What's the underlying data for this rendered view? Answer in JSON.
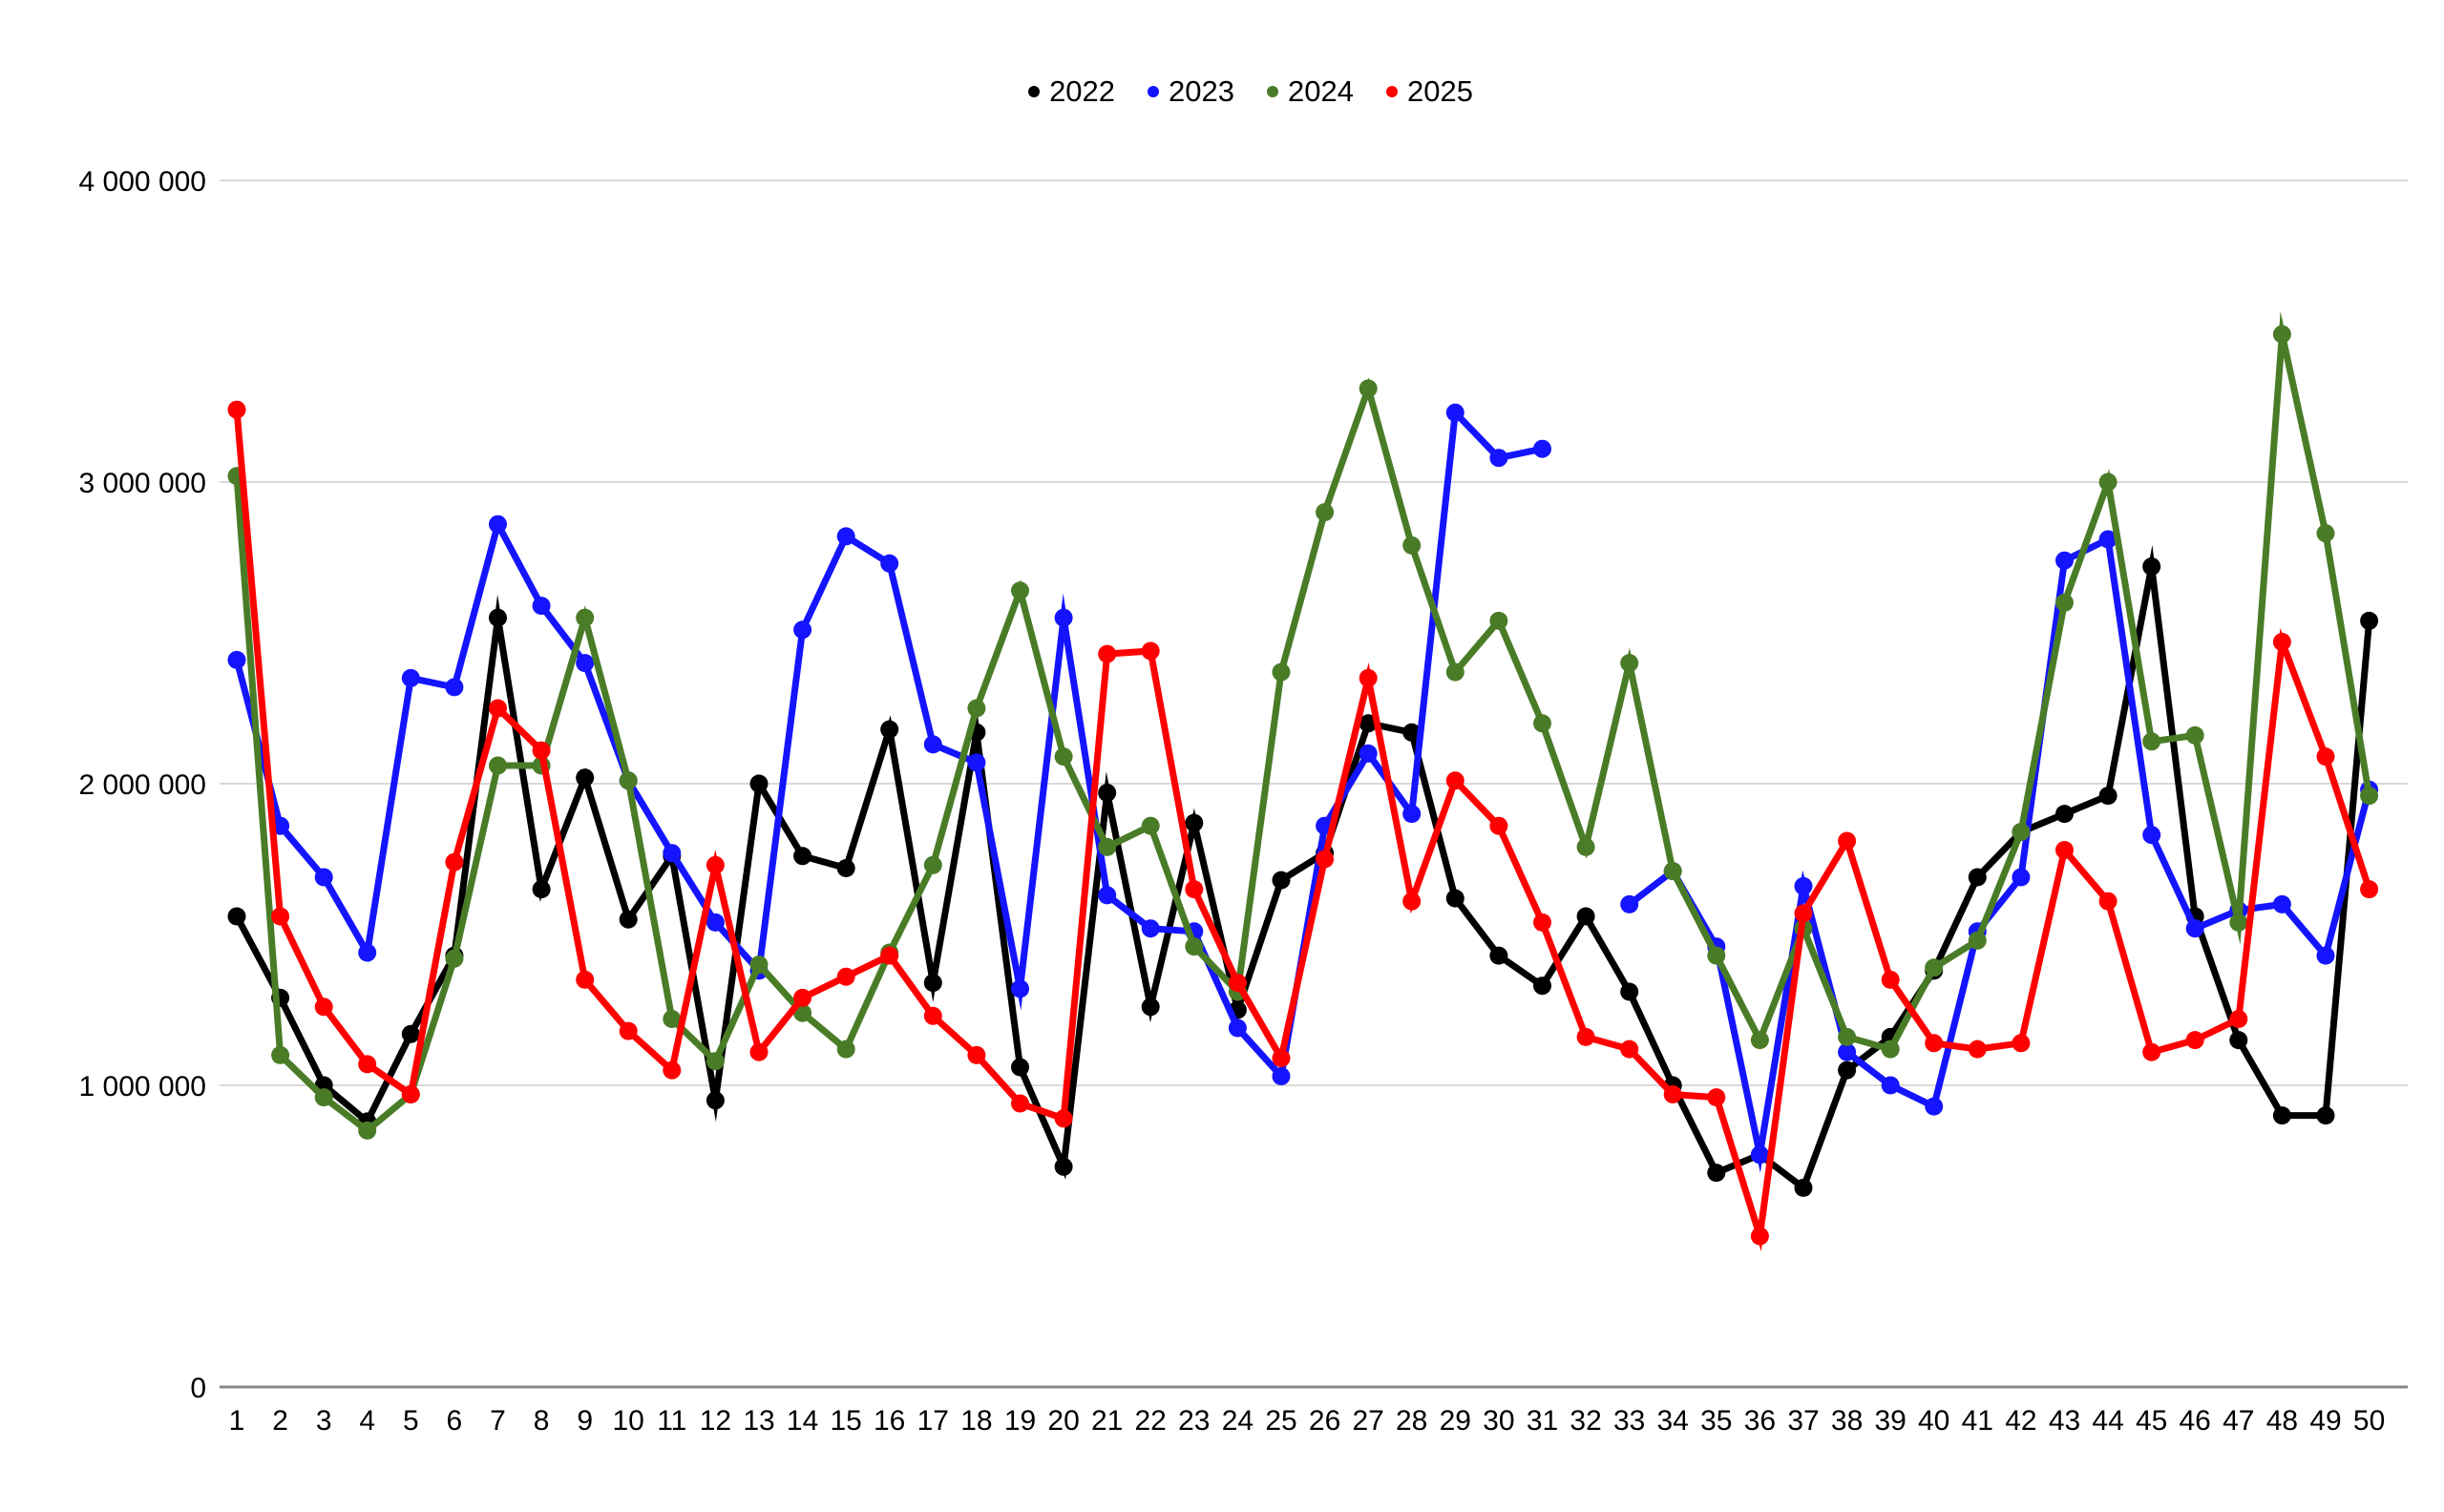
{
  "chart_data": {
    "type": "line",
    "title": "",
    "xlabel": "",
    "ylabel": "",
    "legend_position": "top",
    "grid": true,
    "ylim": [
      0,
      4000000
    ],
    "x_categories": [
      1,
      2,
      3,
      4,
      5,
      6,
      7,
      8,
      9,
      10,
      11,
      12,
      13,
      14,
      15,
      16,
      17,
      18,
      19,
      20,
      21,
      22,
      23,
      24,
      25,
      26,
      27,
      28,
      29,
      30,
      31,
      32,
      33,
      34,
      35,
      36,
      37,
      38,
      39,
      40,
      41,
      42,
      43,
      44,
      45,
      46,
      47,
      48,
      49,
      50
    ],
    "yticks": [
      {
        "value": 0,
        "label": "0"
      },
      {
        "value": 1000000,
        "label": "1 000 000"
      },
      {
        "value": 2000000,
        "label": "2 000 000"
      },
      {
        "value": 3000000,
        "label": "3 000 000"
      },
      {
        "value": 4000000,
        "label": "4 000 000"
      }
    ],
    "colors": {
      "background": "#ffffff",
      "grid": "#d9d9d9",
      "axis": "#888888",
      "text": "#000000"
    },
    "series": [
      {
        "name": "2022",
        "color": "#000000",
        "values": [
          1560000,
          1290000,
          1000000,
          880000,
          1170000,
          1430000,
          2550000,
          1650000,
          2020000,
          1550000,
          1760000,
          950000,
          2000000,
          1760000,
          1720000,
          2180000,
          1340000,
          2170000,
          1060000,
          730000,
          1970000,
          1260000,
          1870000,
          1250000,
          1680000,
          1770000,
          2200000,
          2170000,
          1620000,
          1430000,
          1330000,
          1560000,
          1310000,
          1000000,
          710000,
          770000,
          660000,
          1050000,
          1160000,
          1380000,
          1690000,
          1840000,
          1900000,
          1960000,
          2720000,
          1560000,
          1150000,
          900000,
          900000,
          2540000
        ]
      },
      {
        "name": "2023",
        "color": "#1414ff",
        "values": [
          2410000,
          1860000,
          1690000,
          1440000,
          2350000,
          2320000,
          2860000,
          2590000,
          2400000,
          2010000,
          1770000,
          1540000,
          1380000,
          2510000,
          2820000,
          2730000,
          2130000,
          2070000,
          1320000,
          2550000,
          1630000,
          1520000,
          1510000,
          1190000,
          1030000,
          1860000,
          2100000,
          1900000,
          3230000,
          3080000,
          3110000,
          null,
          1600000,
          1710000,
          1460000,
          770000,
          1660000,
          1110000,
          1000000,
          930000,
          1510000,
          1690000,
          2740000,
          2810000,
          1830000,
          1520000,
          1580000,
          1600000,
          1430000,
          1980000
        ]
      },
      {
        "name": "2024",
        "color": "#4a7c28",
        "values": [
          3020000,
          1100000,
          960000,
          850000,
          970000,
          1420000,
          2060000,
          2060000,
          2550000,
          2010000,
          1220000,
          1080000,
          1400000,
          1240000,
          1120000,
          1440000,
          1730000,
          2250000,
          2640000,
          2090000,
          1790000,
          1860000,
          1460000,
          1310000,
          2370000,
          2900000,
          3310000,
          2790000,
          2370000,
          2540000,
          2200000,
          1790000,
          2400000,
          1710000,
          1430000,
          1150000,
          1520000,
          1160000,
          1120000,
          1390000,
          1480000,
          1840000,
          2600000,
          3000000,
          2140000,
          2160000,
          1540000,
          3490000,
          2830000,
          1960000
        ]
      },
      {
        "name": "2025",
        "color": "#ff0000",
        "values": [
          3240000,
          1560000,
          1260000,
          1070000,
          970000,
          1740000,
          2250000,
          2110000,
          1350000,
          1180000,
          1050000,
          1730000,
          1110000,
          1290000,
          1360000,
          1430000,
          1230000,
          1100000,
          940000,
          890000,
          2430000,
          2440000,
          1650000,
          1340000,
          1090000,
          1750000,
          2350000,
          1610000,
          2010000,
          1860000,
          1540000,
          1160000,
          1120000,
          970000,
          960000,
          500000,
          1570000,
          1810000,
          1350000,
          1140000,
          1120000,
          1140000,
          1780000,
          1610000,
          1110000,
          1150000,
          1220000,
          2470000,
          2090000,
          1650000
        ]
      }
    ]
  }
}
